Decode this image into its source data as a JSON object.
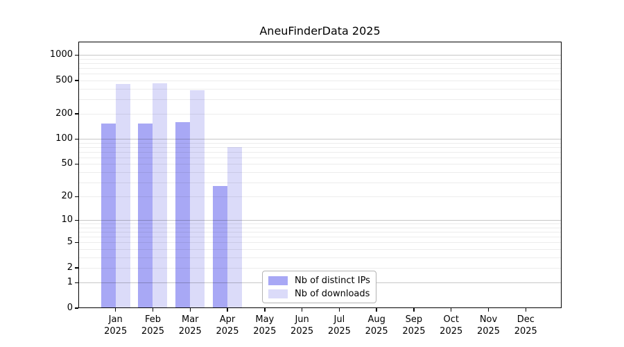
{
  "chart_data": {
    "type": "bar",
    "title": "AneuFinderData 2025",
    "categories": [
      "Jan",
      "Feb",
      "Mar",
      "Apr",
      "May",
      "Jun",
      "Jul",
      "Aug",
      "Sep",
      "Oct",
      "Nov",
      "Dec"
    ],
    "category_year": "2025",
    "series": [
      {
        "name": "Nb of distinct IPs",
        "color": "#a8a8f5",
        "values": [
          152,
          153,
          158,
          27,
          null,
          null,
          null,
          null,
          null,
          null,
          null,
          null
        ]
      },
      {
        "name": "Nb of downloads",
        "color": "#dbdbf9",
        "values": [
          457,
          466,
          383,
          80,
          null,
          null,
          null,
          null,
          null,
          null,
          null,
          null
        ]
      }
    ],
    "y_ticks": [
      0,
      1,
      2,
      5,
      10,
      20,
      50,
      100,
      200,
      500,
      1000
    ],
    "y_scale": "log10(value+1)",
    "ylim": [
      0,
      1440
    ],
    "grid": "horizontal",
    "legend_position": "inside-bottom-center",
    "xlabel": "",
    "ylabel": ""
  },
  "colors": {
    "bar_distinct_ips": "#a8a8f5",
    "bar_downloads": "#dbdbf9",
    "grid_major": "#c6c6c6",
    "grid_minor": "#ececec",
    "frame": "#000000",
    "background": "#ffffff",
    "text": "#000000"
  }
}
